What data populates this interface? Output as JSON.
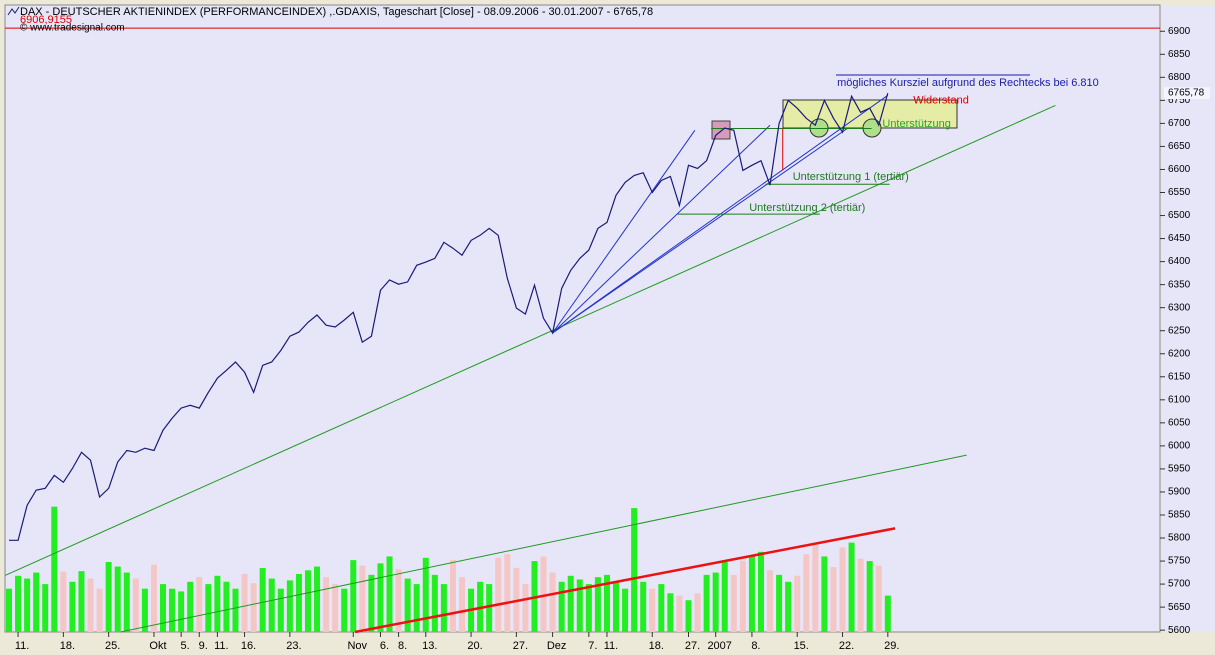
{
  "chart_data": {
    "type": "line",
    "title": "DAX - DEUTSCHER AKTIENINDEX (PERFORMANCEINDEX) ,.GDAXIS, Tageschart [Close] - 08.09.2006 - 30.01.2007 - 6765,78",
    "subtitle": "© www.tradesignal.com",
    "categories": [
      null,
      "11.",
      null,
      null,
      null,
      null,
      "18.",
      null,
      null,
      null,
      null,
      "25.",
      null,
      null,
      null,
      null,
      "Okt",
      null,
      null,
      "5.",
      null,
      "9.",
      null,
      "11.",
      null,
      null,
      "16.",
      null,
      null,
      null,
      null,
      "23.",
      null,
      null,
      null,
      null,
      null,
      null,
      "Nov",
      null,
      null,
      "6.",
      null,
      "8.",
      null,
      null,
      "13.",
      null,
      null,
      null,
      null,
      "20.",
      null,
      null,
      null,
      null,
      "27.",
      null,
      null,
      null,
      "Dez",
      null,
      null,
      null,
      "7.",
      null,
      "11.",
      null,
      null,
      null,
      null,
      "18.",
      null,
      null,
      null,
      "27.",
      null,
      null,
      "2007",
      null,
      null,
      null,
      "8.",
      null,
      null,
      null,
      null,
      "15.",
      null,
      null,
      null,
      null,
      "22.",
      null,
      null,
      null,
      null,
      "29."
    ],
    "series": [
      {
        "color": "#1a1a7a",
        "values": [
          5795,
          5795,
          5871,
          5904,
          5908,
          5936,
          5921,
          5951,
          5986,
          5969,
          5889,
          5908,
          5965,
          5990,
          5986,
          5995,
          5990,
          6034,
          6060,
          6082,
          6088,
          6082,
          6116,
          6147,
          6164,
          6182,
          6160,
          6116,
          6175,
          6182,
          6207,
          6238,
          6247,
          6268,
          6284,
          6262,
          6258,
          6273,
          6290,
          6225,
          6238,
          6338,
          6360,
          6351,
          6356,
          6392,
          6399,
          6407,
          6442,
          6429,
          6414,
          6446,
          6457,
          6472,
          6457,
          6364,
          6299,
          6286,
          6349,
          6277,
          6245,
          6342,
          6381,
          6407,
          6425,
          6472,
          6485,
          6544,
          6572,
          6587,
          6593,
          6550,
          6576,
          6585,
          6522,
          6609,
          6602,
          6619,
          6674,
          6690,
          6685,
          6598,
          6609,
          6619,
          6566,
          6700,
          6750,
          6733,
          6711,
          6696,
          6750,
          6711,
          6681,
          6759,
          6724,
          6733,
          6696,
          6765.78
        ]
      }
    ],
    "volume": {
      "up_color": "#22ee22",
      "down_color": "#f5c6c6",
      "values": [
        5690,
        5718,
        5712,
        5725,
        5700,
        5868,
        5727,
        5705,
        5728,
        5712,
        5690,
        5748,
        5738,
        5725,
        5712,
        5690,
        5742,
        5700,
        5690,
        5684,
        5705,
        5715,
        5700,
        5718,
        5705,
        5690,
        5722,
        5702,
        5735,
        5712,
        5690,
        5708,
        5722,
        5730,
        5738,
        5715,
        5700,
        5690,
        5752,
        5740,
        5720,
        5745,
        5760,
        5732,
        5712,
        5700,
        5757,
        5720,
        5700,
        5752,
        5715,
        5690,
        5705,
        5700,
        5757,
        5765,
        5735,
        5700,
        5750,
        5760,
        5725,
        5705,
        5718,
        5710,
        5700,
        5715,
        5720,
        5705,
        5690,
        5865,
        5705,
        5690,
        5700,
        5680,
        5675,
        5665,
        5680,
        5720,
        5725,
        5748,
        5720,
        5750,
        5760,
        5770,
        5730,
        5720,
        5705,
        5718,
        5765,
        5785,
        5760,
        5737,
        5780,
        5790,
        5755,
        5750,
        5740,
        5675
      ]
    },
    "ylim": [
      5596,
      6957
    ],
    "yticks": [
      5600,
      5650,
      5700,
      5750,
      5800,
      5850,
      5900,
      5950,
      6000,
      6050,
      6100,
      6150,
      6200,
      6250,
      6300,
      6350,
      6400,
      6450,
      6500,
      6550,
      6600,
      6650,
      6700,
      6750,
      6800,
      6850,
      6900
    ],
    "reference_line": {
      "value": 6906.9155,
      "label": "6906,9155",
      "color": "#dd0000"
    },
    "last_value": {
      "value": 6765.78,
      "label": "6765,78"
    },
    "trendlines": [
      {
        "x": [
          -0.4,
          115.5
        ],
        "y": [
          5719,
          6739
        ],
        "color": "#1e9a1e"
      },
      {
        "x": [
          12.3,
          105.7
        ],
        "y": [
          5596,
          5980
        ],
        "color": "#1e9a1e"
      },
      {
        "x": [
          38.2,
          97.8
        ],
        "y": [
          5596,
          5821
        ],
        "color": "#ee1111"
      },
      {
        "x": [
          60,
          75.7
        ],
        "y": [
          6245,
          6685
        ],
        "color": "#2233cc"
      },
      {
        "x": [
          60,
          84
        ],
        "y": [
          6245,
          6696
        ],
        "color": "#2233cc"
      },
      {
        "x": [
          60,
          92.6
        ],
        "y": [
          6245,
          6690
        ],
        "color": "#2233cc"
      },
      {
        "x": [
          60,
          97
        ],
        "y": [
          6245,
          6761
        ],
        "color": "#2233cc"
      },
      {
        "x": [
          77.5,
          95.2
        ],
        "y": [
          6689,
          6689
        ],
        "color": "#1e7a1e"
      },
      {
        "x": [
          83.5,
          97.2
        ],
        "y": [
          6568,
          6568
        ],
        "color": "#1e7a1e"
      },
      {
        "x": [
          73.7,
          89.5
        ],
        "y": [
          6503,
          6503
        ],
        "color": "#1e7a1e"
      },
      {
        "x": [
          85.4,
          85.4
        ],
        "y": [
          6689,
          6598
        ],
        "color": "#dd0000"
      }
    ],
    "annotations": [
      {
        "text": "mögliches Kursziel aufgrund des Rechtecks bei 6.810",
        "x": 91.4,
        "y": 6788,
        "color": "#1a1aaa"
      },
      {
        "text": "Widerstand",
        "x": 99.8,
        "y": 6750,
        "color": "#dd0000"
      },
      {
        "text": "Unterstützung",
        "x": 96.4,
        "y": 6698,
        "color": "#22aa22"
      },
      {
        "text": "Unterstützung 1 (tertiär)",
        "x": 86.5,
        "y": 6583,
        "color": "#1e7a1e"
      },
      {
        "text": "Unterstützung 2 (tertiär)",
        "x": 81.7,
        "y": 6516,
        "color": "#1e7a1e"
      }
    ]
  }
}
